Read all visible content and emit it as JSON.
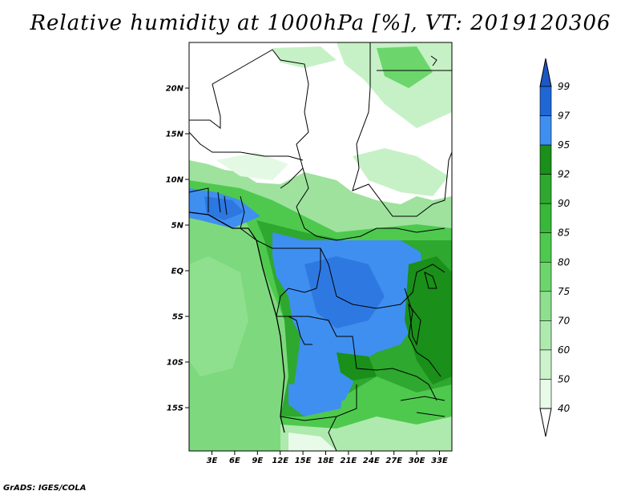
{
  "title": "Relative humidity at 1000hPa [%], VT: 2019120306",
  "footer": "GrADS: IGES/COLA",
  "map": {
    "lat_ticks": [
      "20N",
      "15N",
      "10N",
      "5N",
      "EQ",
      "5S",
      "10S",
      "15S"
    ],
    "lon_ticks": [
      "3E",
      "6E",
      "9E",
      "12E",
      "15E",
      "18E",
      "21E",
      "24E",
      "27E",
      "30E",
      "33E"
    ]
  },
  "colorbar": {
    "labels": [
      "99",
      "97",
      "95",
      "92",
      "90",
      "85",
      "80",
      "75",
      "70",
      "60",
      "50",
      "40"
    ],
    "colors": [
      "#2067d6",
      "#3f8ff0",
      "#1a8f1a",
      "#2ea82e",
      "#38b838",
      "#4ec94e",
      "#6cd66c",
      "#8ee08e",
      "#aeeaae",
      "#ccf3cc",
      "#e8fbe8"
    ]
  }
}
